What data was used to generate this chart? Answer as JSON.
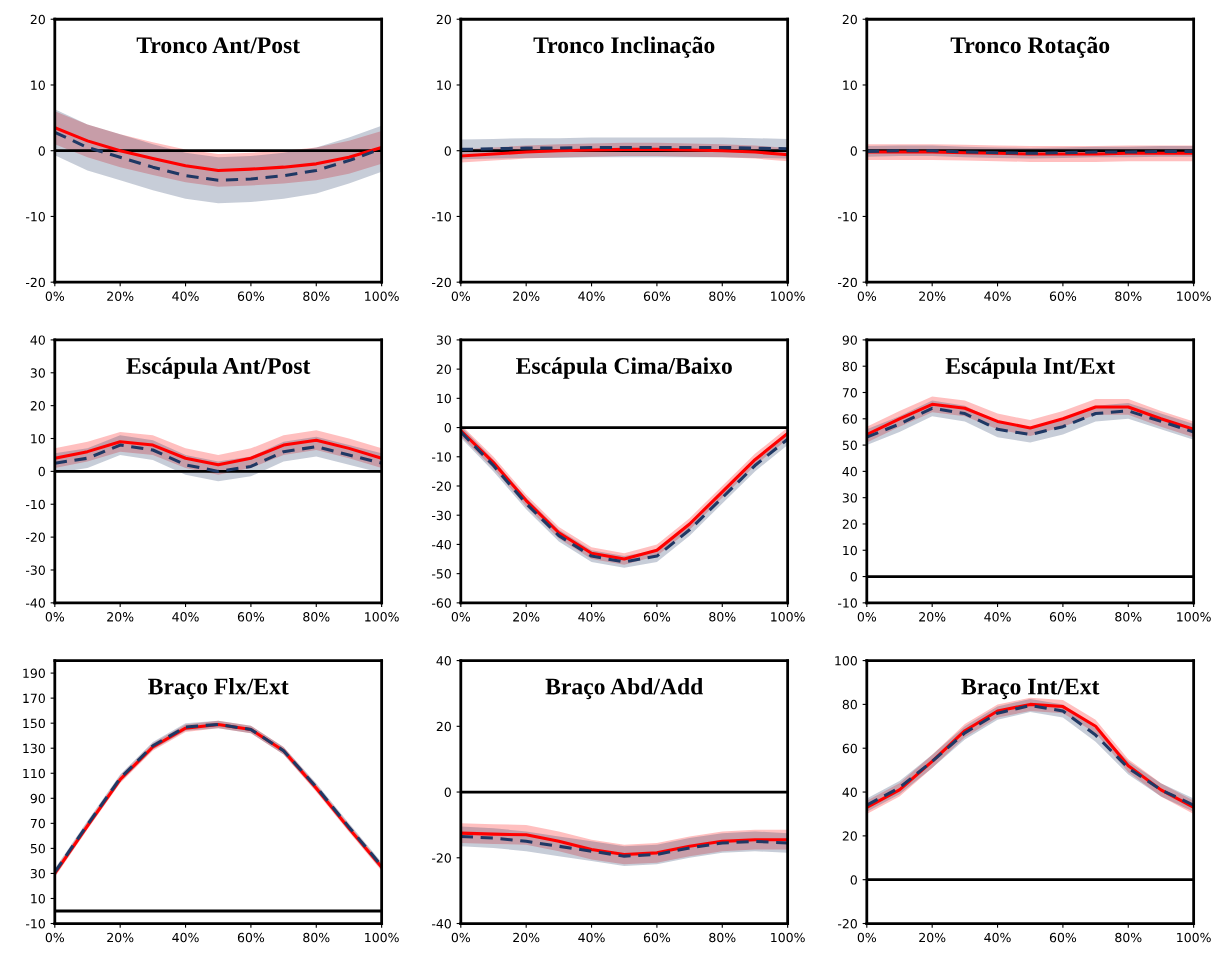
{
  "chart_data": [
    {
      "type": "line",
      "title": "Tronco Ant/Post",
      "x": [
        0,
        10,
        20,
        30,
        40,
        50,
        60,
        70,
        80,
        90,
        100
      ],
      "xlim": [
        0,
        100
      ],
      "xticks": [
        {
          "value": 0,
          "label": "0%"
        },
        {
          "value": 20,
          "label": "20%"
        },
        {
          "value": 40,
          "label": "40%"
        },
        {
          "value": 60,
          "label": "60%"
        },
        {
          "value": 80,
          "label": "80%"
        },
        {
          "value": 100,
          "label": "100%"
        }
      ],
      "ylim": [
        -20,
        20
      ],
      "yticks": [
        -20,
        -10,
        0,
        10,
        20
      ],
      "ref_lines": [
        {
          "axis": "y",
          "value": 0,
          "color": "#000000"
        }
      ],
      "series": [
        {
          "color": "#1f3864",
          "line_style": "dashed",
          "values": [
            2.8,
            0.5,
            -1,
            -2.5,
            -3.8,
            -4.5,
            -4.3,
            -3.8,
            -3,
            -1.5,
            0.3
          ],
          "lower": [
            -0.7,
            -3,
            -4.5,
            -6,
            -7.3,
            -8,
            -7.8,
            -7.3,
            -6.5,
            -5,
            -3.2
          ],
          "upper": [
            6.3,
            4,
            2.5,
            1,
            -0.3,
            -1,
            -0.8,
            -0.3,
            0.5,
            2,
            3.8
          ]
        },
        {
          "color": "#ff0000",
          "line_style": "solid",
          "values": [
            3.5,
            1.5,
            0,
            -1.2,
            -2.3,
            -3,
            -2.8,
            -2.5,
            -2,
            -1,
            0.5
          ],
          "lower": [
            1,
            -1,
            -2.5,
            -3.7,
            -4.8,
            -5.5,
            -5.3,
            -5,
            -4.5,
            -3.5,
            -2
          ],
          "upper": [
            6,
            4,
            2.5,
            1.3,
            0.2,
            -0.5,
            -0.3,
            0,
            0.5,
            1.5,
            3
          ]
        }
      ]
    },
    {
      "type": "line",
      "title": "Tronco Inclinação",
      "x": [
        0,
        10,
        20,
        30,
        40,
        50,
        60,
        70,
        80,
        90,
        100
      ],
      "xlim": [
        0,
        100
      ],
      "xticks": [
        {
          "value": 0,
          "label": "0%"
        },
        {
          "value": 20,
          "label": "20%"
        },
        {
          "value": 40,
          "label": "40%"
        },
        {
          "value": 60,
          "label": "60%"
        },
        {
          "value": 80,
          "label": "80%"
        },
        {
          "value": 100,
          "label": "100%"
        }
      ],
      "ylim": [
        -20,
        20
      ],
      "yticks": [
        -20,
        -10,
        0,
        10,
        20
      ],
      "ref_lines": [
        {
          "axis": "y",
          "value": 0,
          "color": "#000000"
        }
      ],
      "series": [
        {
          "color": "#1f3864",
          "line_style": "dashed",
          "values": [
            0.2,
            0.3,
            0.4,
            0.4,
            0.5,
            0.5,
            0.5,
            0.5,
            0.5,
            0.4,
            0.3
          ],
          "lower": [
            -1.3,
            -1.2,
            -1.1,
            -1.1,
            -1,
            -1,
            -1,
            -1,
            -1,
            -1.1,
            -1.2
          ],
          "upper": [
            1.7,
            1.8,
            1.9,
            1.9,
            2,
            2,
            2,
            2,
            2,
            1.9,
            1.8
          ]
        },
        {
          "color": "#ff0000",
          "line_style": "solid",
          "values": [
            -0.8,
            -0.5,
            -0.2,
            0,
            0.1,
            0.2,
            0.2,
            0.1,
            0,
            -0.2,
            -0.6
          ],
          "lower": [
            -1.8,
            -1.5,
            -1.2,
            -1,
            -0.9,
            -0.8,
            -0.8,
            -0.9,
            -1,
            -1.2,
            -1.6
          ],
          "upper": [
            0.2,
            0.5,
            0.8,
            1,
            1.1,
            1.2,
            1.2,
            1.1,
            1,
            0.8,
            0.4
          ]
        }
      ]
    },
    {
      "type": "line",
      "title": "Tronco Rotação",
      "x": [
        0,
        10,
        20,
        30,
        40,
        50,
        60,
        70,
        80,
        90,
        100
      ],
      "xlim": [
        0,
        100
      ],
      "xticks": [
        {
          "value": 0,
          "label": "0%"
        },
        {
          "value": 20,
          "label": "20%"
        },
        {
          "value": 40,
          "label": "40%"
        },
        {
          "value": 60,
          "label": "60%"
        },
        {
          "value": 80,
          "label": "80%"
        },
        {
          "value": 100,
          "label": "100%"
        }
      ],
      "ylim": [
        -20,
        20
      ],
      "yticks": [
        -20,
        -10,
        0,
        10,
        20
      ],
      "ref_lines": [
        {
          "axis": "y",
          "value": 0,
          "color": "#000000"
        }
      ],
      "series": [
        {
          "color": "#1f3864",
          "line_style": "dashed",
          "values": [
            -0.1,
            0,
            0,
            -0.2,
            -0.3,
            -0.4,
            -0.3,
            -0.2,
            -0.2,
            -0.1,
            -0.1
          ],
          "lower": [
            -0.9,
            -0.8,
            -0.8,
            -1,
            -1.1,
            -1.2,
            -1.1,
            -1,
            -1,
            -0.9,
            -0.9
          ],
          "upper": [
            0.7,
            0.8,
            0.8,
            0.6,
            0.5,
            0.4,
            0.5,
            0.6,
            0.6,
            0.7,
            0.7
          ]
        },
        {
          "color": "#ff0000",
          "line_style": "solid",
          "values": [
            -0.2,
            -0.2,
            -0.2,
            -0.3,
            -0.4,
            -0.5,
            -0.5,
            -0.5,
            -0.4,
            -0.4,
            -0.4
          ],
          "lower": [
            -1.4,
            -1.4,
            -1.4,
            -1.5,
            -1.6,
            -1.7,
            -1.7,
            -1.7,
            -1.6,
            -1.6,
            -1.6
          ],
          "upper": [
            1,
            1,
            1,
            0.9,
            0.8,
            0.7,
            0.7,
            0.7,
            0.8,
            0.8,
            0.8
          ]
        }
      ]
    },
    {
      "type": "line",
      "title": "Escápula Ant/Post",
      "x": [
        0,
        10,
        20,
        30,
        40,
        50,
        60,
        70,
        80,
        90,
        100
      ],
      "xlim": [
        0,
        100
      ],
      "xticks": [
        {
          "value": 0,
          "label": "0%"
        },
        {
          "value": 20,
          "label": "20%"
        },
        {
          "value": 40,
          "label": "40%"
        },
        {
          "value": 60,
          "label": "60%"
        },
        {
          "value": 80,
          "label": "80%"
        },
        {
          "value": 100,
          "label": "100%"
        }
      ],
      "ylim": [
        -40,
        40
      ],
      "yticks": [
        -40,
        -30,
        -20,
        -10,
        0,
        10,
        20,
        30,
        40
      ],
      "ref_lines": [
        {
          "axis": "y",
          "value": 0,
          "color": "#000000"
        }
      ],
      "series": [
        {
          "color": "#1f3864",
          "line_style": "dashed",
          "values": [
            2.5,
            4,
            8,
            6.5,
            2,
            0,
            1.5,
            6,
            7.5,
            5,
            2.5
          ],
          "lower": [
            -0.5,
            1,
            5,
            3.5,
            -1,
            -3,
            -1.5,
            3,
            4.5,
            2,
            -0.5
          ],
          "upper": [
            5.5,
            7,
            11,
            9.5,
            5,
            3,
            4.5,
            9,
            10.5,
            8,
            5.5
          ]
        },
        {
          "color": "#ff0000",
          "line_style": "solid",
          "values": [
            4,
            6,
            9,
            8,
            4,
            2,
            4,
            8,
            9.5,
            7,
            4
          ],
          "lower": [
            1,
            3,
            6,
            5,
            1,
            -1,
            1,
            5,
            6.5,
            4,
            1
          ],
          "upper": [
            7,
            9,
            12,
            11,
            7,
            5,
            7,
            11,
            12.5,
            10,
            7
          ]
        }
      ]
    },
    {
      "type": "line",
      "title": "Escápula Cima/Baixo",
      "x": [
        0,
        10,
        20,
        30,
        40,
        50,
        60,
        70,
        80,
        90,
        100
      ],
      "xlim": [
        0,
        100
      ],
      "xticks": [
        {
          "value": 0,
          "label": "0%"
        },
        {
          "value": 20,
          "label": "20%"
        },
        {
          "value": 40,
          "label": "40%"
        },
        {
          "value": 60,
          "label": "60%"
        },
        {
          "value": 80,
          "label": "80%"
        },
        {
          "value": 100,
          "label": "100%"
        }
      ],
      "ylim": [
        -60,
        30
      ],
      "yticks": [
        -60,
        -50,
        -40,
        -30,
        -20,
        -10,
        0,
        10,
        20,
        30
      ],
      "ref_lines": [
        {
          "axis": "y",
          "value": 0,
          "color": "#000000"
        }
      ],
      "series": [
        {
          "color": "#1f3864",
          "line_style": "dashed",
          "values": [
            -1.5,
            -13,
            -26,
            -37,
            -44,
            -46,
            -44,
            -35,
            -24,
            -13,
            -4
          ],
          "lower": [
            -3.5,
            -15,
            -28,
            -39,
            -46,
            -48,
            -46,
            -37,
            -26,
            -15,
            -6
          ],
          "upper": [
            0.5,
            -11,
            -24,
            -35,
            -42,
            -44,
            -42,
            -33,
            -22,
            -11,
            -2
          ]
        },
        {
          "color": "#ff0000",
          "line_style": "solid",
          "values": [
            -1,
            -12,
            -25,
            -36,
            -43,
            -45,
            -42,
            -33,
            -22,
            -11,
            -2
          ],
          "lower": [
            -3,
            -14,
            -27,
            -38,
            -45,
            -47,
            -44,
            -35,
            -24,
            -13,
            -4
          ],
          "upper": [
            1,
            -10,
            -23,
            -34,
            -41,
            -43,
            -40,
            -31,
            -20,
            -9,
            0
          ]
        }
      ]
    },
    {
      "type": "line",
      "title": "Escápula Int/Ext",
      "x": [
        0,
        10,
        20,
        30,
        40,
        50,
        60,
        70,
        80,
        90,
        100
      ],
      "xlim": [
        0,
        100
      ],
      "xticks": [
        {
          "value": 0,
          "label": "0%"
        },
        {
          "value": 20,
          "label": "20%"
        },
        {
          "value": 40,
          "label": "40%"
        },
        {
          "value": 60,
          "label": "60%"
        },
        {
          "value": 80,
          "label": "80%"
        },
        {
          "value": 100,
          "label": "100%"
        }
      ],
      "ylim": [
        -10,
        90
      ],
      "yticks": [
        -10,
        0,
        10,
        20,
        30,
        40,
        50,
        60,
        70,
        80,
        90
      ],
      "ref_lines": [
        {
          "axis": "y",
          "value": 0,
          "color": "#000000"
        }
      ],
      "series": [
        {
          "color": "#1f3864",
          "line_style": "dashed",
          "values": [
            53,
            58,
            64,
            62,
            56,
            54,
            57,
            62,
            63,
            59,
            55
          ],
          "lower": [
            50,
            55,
            61,
            59,
            53,
            51,
            54,
            59,
            60,
            56,
            52
          ],
          "upper": [
            56,
            61,
            67,
            65,
            59,
            57,
            60,
            65,
            66,
            62,
            58
          ]
        },
        {
          "color": "#ff0000",
          "line_style": "solid",
          "values": [
            54,
            60,
            65.5,
            64,
            59,
            56.5,
            60,
            64.5,
            64.5,
            60,
            56
          ],
          "lower": [
            51,
            57,
            62.5,
            61,
            56,
            53.5,
            57,
            61.5,
            61.5,
            57,
            53
          ],
          "upper": [
            57,
            63,
            68.5,
            67,
            62,
            59.5,
            63,
            67.5,
            67.5,
            63,
            59
          ]
        }
      ]
    },
    {
      "type": "line",
      "title": "Braço Flx/Ext",
      "x": [
        0,
        10,
        20,
        30,
        40,
        50,
        60,
        70,
        80,
        90,
        100
      ],
      "xlim": [
        0,
        100
      ],
      "xticks": [
        {
          "value": 0,
          "label": "0%"
        },
        {
          "value": 20,
          "label": "20%"
        },
        {
          "value": 40,
          "label": "40%"
        },
        {
          "value": 60,
          "label": "60%"
        },
        {
          "value": 80,
          "label": "80%"
        },
        {
          "value": 100,
          "label": "100%"
        }
      ],
      "ylim": [
        -10,
        200
      ],
      "yticks": [
        -10,
        10,
        30,
        50,
        70,
        90,
        110,
        130,
        150,
        170,
        190
      ],
      "ref_lines": [
        {
          "axis": "y",
          "value": 0,
          "color": "#000000"
        }
      ],
      "series": [
        {
          "color": "#1f3864",
          "line_style": "dashed",
          "values": [
            31,
            69,
            106,
            132,
            147,
            149,
            145,
            128,
            99,
            67,
            36
          ],
          "lower": [
            28,
            66,
            103,
            129,
            144,
            146,
            142,
            125,
            96,
            64,
            33
          ],
          "upper": [
            34,
            72,
            109,
            135,
            150,
            152,
            148,
            131,
            102,
            70,
            39
          ]
        },
        {
          "color": "#ff0000",
          "line_style": "solid",
          "values": [
            30,
            68,
            105,
            131,
            146,
            149,
            145,
            128,
            98,
            66,
            35
          ],
          "lower": [
            27,
            65,
            102,
            128,
            143,
            146,
            142,
            125,
            95,
            63,
            32
          ],
          "upper": [
            33,
            71,
            108,
            134,
            149,
            152,
            148,
            131,
            101,
            69,
            38
          ]
        }
      ]
    },
    {
      "type": "line",
      "title": "Braço Abd/Add",
      "x": [
        0,
        10,
        20,
        30,
        40,
        50,
        60,
        70,
        80,
        90,
        100
      ],
      "xlim": [
        0,
        100
      ],
      "xticks": [
        {
          "value": 0,
          "label": "0%"
        },
        {
          "value": 20,
          "label": "20%"
        },
        {
          "value": 40,
          "label": "40%"
        },
        {
          "value": 60,
          "label": "60%"
        },
        {
          "value": 80,
          "label": "80%"
        },
        {
          "value": 100,
          "label": "100%"
        }
      ],
      "ylim": [
        -40,
        40
      ],
      "yticks": [
        -40,
        -20,
        0,
        20,
        40
      ],
      "ref_lines": [
        {
          "axis": "y",
          "value": 0,
          "color": "#000000"
        }
      ],
      "series": [
        {
          "color": "#1f3864",
          "line_style": "dashed",
          "values": [
            -13.5,
            -14,
            -15,
            -16.5,
            -18,
            -19.5,
            -19,
            -17,
            -15.5,
            -15,
            -15.5
          ],
          "lower": [
            -16.5,
            -17,
            -18,
            -19.5,
            -21,
            -22.5,
            -22,
            -20,
            -18.5,
            -18,
            -18.5
          ],
          "upper": [
            -10.5,
            -11,
            -12,
            -13.5,
            -15,
            -16.5,
            -16,
            -14,
            -12.5,
            -12,
            -12.5
          ]
        },
        {
          "color": "#ff0000",
          "line_style": "solid",
          "values": [
            -12.5,
            -12.8,
            -13,
            -15,
            -17.5,
            -19,
            -18.5,
            -16.5,
            -15,
            -14.5,
            -14.5
          ],
          "lower": [
            -15.5,
            -15.8,
            -16,
            -18,
            -20.5,
            -22,
            -21.5,
            -19.5,
            -18,
            -17.5,
            -17.5
          ],
          "upper": [
            -9.5,
            -9.8,
            -10,
            -12,
            -14.5,
            -16,
            -15.5,
            -13.5,
            -12,
            -11.5,
            -11.5
          ]
        }
      ]
    },
    {
      "type": "line",
      "title": "Braço Int/Ext",
      "x": [
        0,
        10,
        20,
        30,
        40,
        50,
        60,
        70,
        80,
        90,
        100
      ],
      "xlim": [
        0,
        100
      ],
      "xticks": [
        {
          "value": 0,
          "label": "0%"
        },
        {
          "value": 20,
          "label": "20%"
        },
        {
          "value": 40,
          "label": "40%"
        },
        {
          "value": 60,
          "label": "60%"
        },
        {
          "value": 80,
          "label": "80%"
        },
        {
          "value": 100,
          "label": "100%"
        }
      ],
      "ylim": [
        -20,
        100
      ],
      "yticks": [
        -20,
        0,
        20,
        40,
        60,
        80,
        100
      ],
      "ref_lines": [
        {
          "axis": "y",
          "value": 0,
          "color": "#000000"
        }
      ],
      "series": [
        {
          "color": "#1f3864",
          "line_style": "dashed",
          "values": [
            34,
            42,
            54,
            67,
            76,
            79.5,
            77,
            66,
            51,
            41,
            34
          ],
          "lower": [
            31,
            39,
            51,
            64,
            73,
            76.5,
            74,
            63,
            48,
            38,
            31
          ],
          "upper": [
            37,
            45,
            57,
            70,
            79,
            82.5,
            80,
            69,
            54,
            44,
            37
          ]
        },
        {
          "color": "#ff0000",
          "line_style": "solid",
          "values": [
            33,
            41,
            54,
            68,
            77,
            80,
            79,
            70,
            52,
            41,
            33
          ],
          "lower": [
            30,
            38,
            51,
            65,
            74,
            77,
            76,
            67,
            49,
            38,
            30
          ],
          "upper": [
            36,
            44,
            57,
            71,
            80,
            83,
            82,
            73,
            55,
            44,
            36
          ]
        }
      ]
    }
  ]
}
